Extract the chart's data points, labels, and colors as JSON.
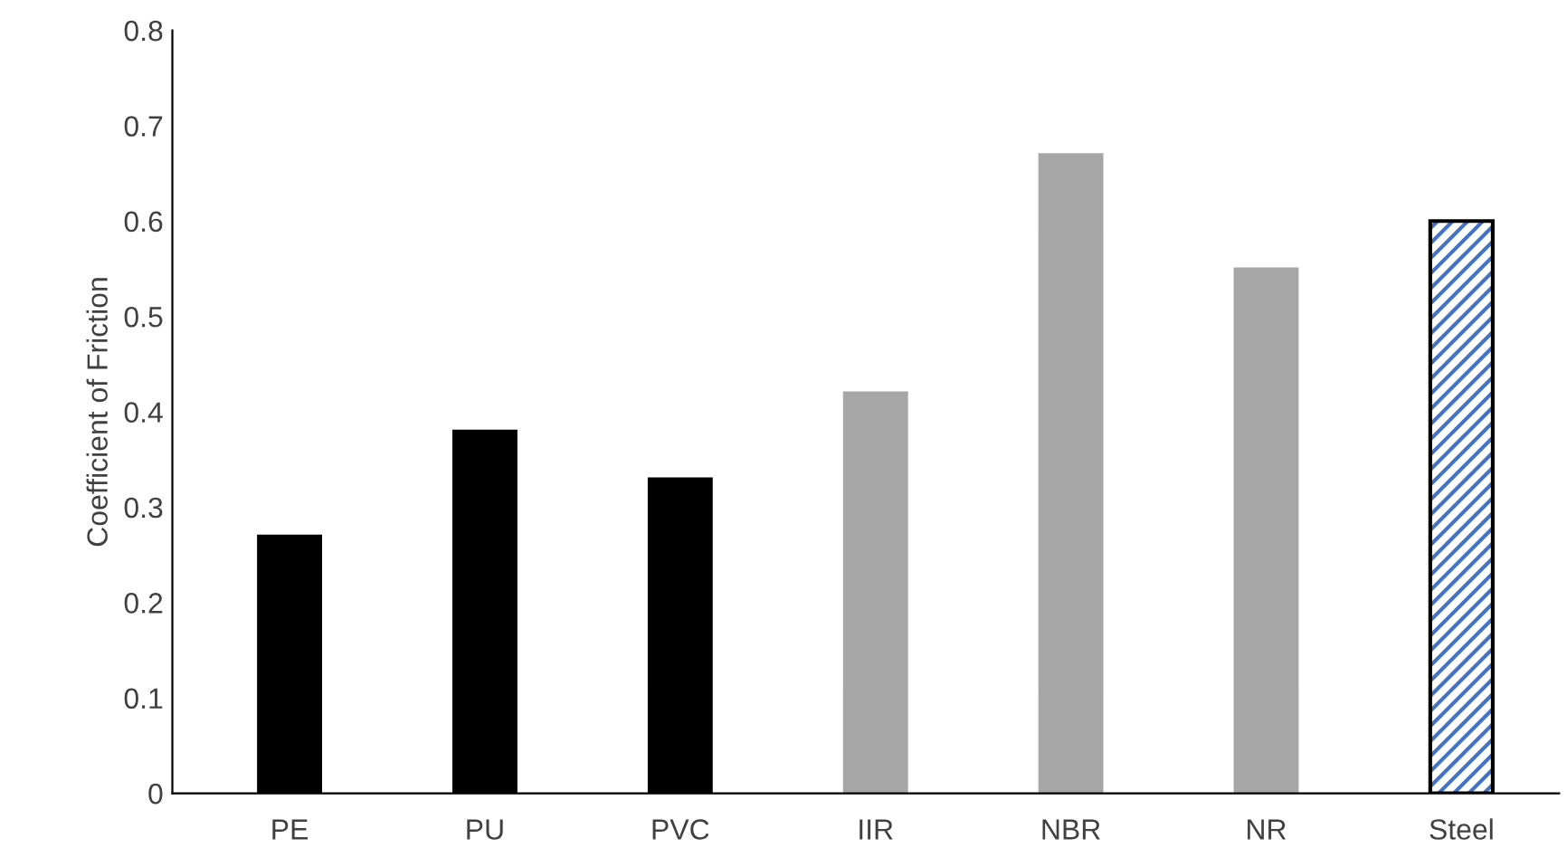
{
  "chart_data": {
    "type": "bar",
    "ylabel": "Coefficient of Friction",
    "categories": [
      "PE",
      "PU",
      "PVC",
      "IIR",
      "NBR",
      "NR",
      "Steel"
    ],
    "series": [
      {
        "colors": [
          "#000000",
          "#000000",
          "#000000",
          "#a6a6a6",
          "#a6a6a6",
          "#a6a6a6",
          null
        ],
        "values": [
          0.27,
          0.38,
          0.33,
          0.42,
          0.67,
          0.55,
          null
        ]
      },
      {
        "color": "#4472c4",
        "values": [
          null,
          null,
          null,
          null,
          null,
          null,
          0.6
        ]
      }
    ],
    "ylim": [
      0,
      0.8
    ],
    "yticks": [
      0,
      0.1,
      0.2,
      0.3,
      0.4,
      0.5,
      0.6,
      0.7,
      0.8
    ],
    "grid": false
  }
}
